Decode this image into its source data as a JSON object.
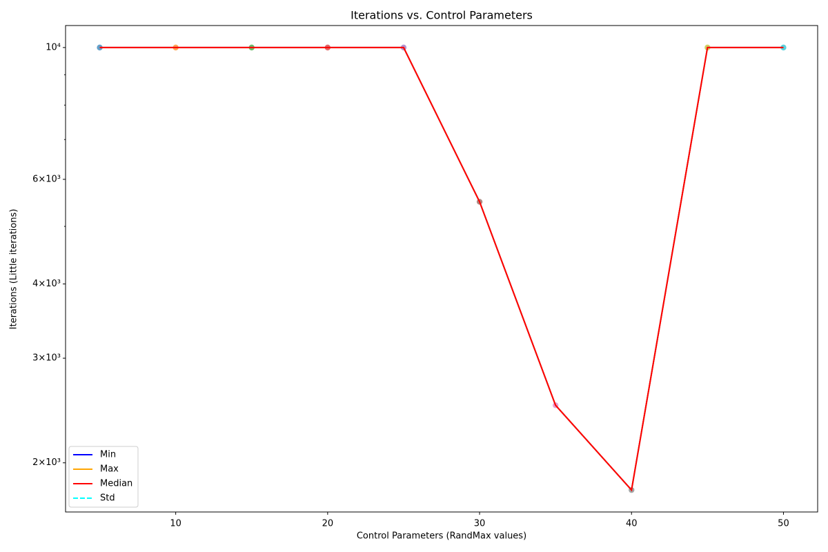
{
  "chart_data": {
    "type": "line",
    "title": "Iterations vs. Control Parameters",
    "xlabel": "Control Parameters (RandMax values)",
    "ylabel": "Iterations (Little iterations)",
    "x": [
      5,
      10,
      15,
      20,
      25,
      30,
      35,
      40,
      45,
      50
    ],
    "series": [
      {
        "name": "Min",
        "color": "#0000ff",
        "dash": false,
        "values": [
          10000,
          10000,
          10000,
          10000,
          10000,
          5500,
          2500,
          1800,
          10000,
          10000
        ]
      },
      {
        "name": "Max",
        "color": "#ffa500",
        "dash": false,
        "values": [
          10000,
          10000,
          10000,
          10000,
          10000,
          5500,
          2500,
          1800,
          10000,
          10000
        ]
      },
      {
        "name": "Median",
        "color": "#ff0000",
        "dash": false,
        "values": [
          10000,
          10000,
          10000,
          10000,
          10000,
          5500,
          2500,
          1800,
          10000,
          10000
        ]
      },
      {
        "name": "Std",
        "color": "#00ffff",
        "dash": true,
        "values": [
          0,
          0,
          0,
          0,
          0,
          0,
          0,
          0,
          0,
          0
        ]
      }
    ],
    "point_colors": [
      "#1f77b4",
      "#ff7f0e",
      "#2ca02c",
      "#d62728",
      "#9467bd",
      "#8c564b",
      "#e377c2",
      "#7f7f7f",
      "#bcbd22",
      "#17becf"
    ],
    "xlim": [
      2.75,
      52.25
    ],
    "xticks": [
      10,
      20,
      30,
      40,
      50
    ],
    "ylim": [
      1653,
      10890
    ],
    "log_y": true,
    "yticks": [
      {
        "value": 2000,
        "label": "2×10³"
      },
      {
        "value": 3000,
        "label": "3×10³"
      },
      {
        "value": 4000,
        "label": "4×10³"
      },
      {
        "value": 6000,
        "label": "6×10³"
      },
      {
        "value": 10000,
        "label": "10⁴"
      }
    ],
    "yticks_minor": [
      5000,
      7000,
      8000,
      9000
    ],
    "grid": false,
    "legend": "lower left"
  }
}
